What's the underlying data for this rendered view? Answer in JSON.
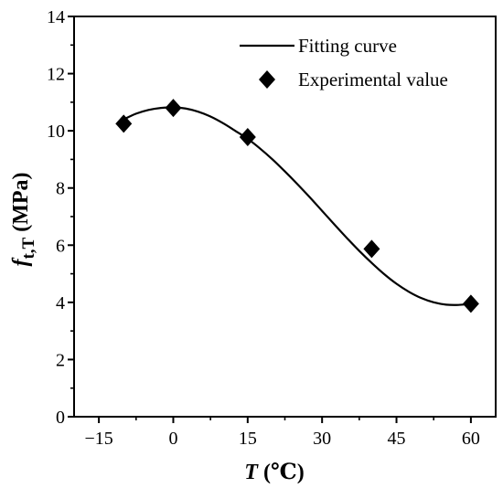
{
  "chart_data": {
    "type": "line",
    "xlim": [
      -20,
      65
    ],
    "ylim": [
      0,
      14
    ],
    "xticks": [
      -15,
      0,
      15,
      30,
      45,
      60
    ],
    "yticks": [
      0,
      2,
      4,
      6,
      8,
      10,
      12,
      14
    ],
    "xtick_labels": [
      "−15",
      "0",
      "15",
      "30",
      "45",
      "60"
    ],
    "ytick_labels": [
      "0",
      "2",
      "4",
      "6",
      "8",
      "10",
      "12",
      "14"
    ],
    "xlabel": {
      "var": "T",
      "unit": " (℃)"
    },
    "ylabel": {
      "var": "f",
      "sub": "t,T",
      "unit": " (MPa)"
    },
    "grid": false,
    "legend_position": "top-right",
    "series": [
      {
        "name": "Fitting curve",
        "kind": "line",
        "color": "#000000",
        "x": [
          -10,
          -7.5,
          -5,
          -2.5,
          0,
          2.5,
          5,
          7.5,
          10,
          12.5,
          15,
          17.5,
          20,
          22.5,
          25,
          27.5,
          30,
          32.5,
          35,
          37.5,
          40,
          42.5,
          45,
          47.5,
          50,
          52.5,
          55,
          57.5,
          60
        ],
        "y": [
          10.4,
          10.6,
          10.73,
          10.8,
          10.82,
          10.78,
          10.67,
          10.5,
          10.27,
          10.0,
          9.72,
          9.38,
          9.0,
          8.58,
          8.14,
          7.68,
          7.2,
          6.72,
          6.25,
          5.8,
          5.38,
          4.99,
          4.65,
          4.37,
          4.15,
          4.0,
          3.92,
          3.91,
          3.95
        ]
      },
      {
        "name": "Experimental value",
        "kind": "scatter",
        "marker": "diamond",
        "color": "#000000",
        "x": [
          -10,
          0,
          15,
          40,
          60
        ],
        "y": [
          10.25,
          10.8,
          9.78,
          5.87,
          3.95
        ]
      }
    ]
  }
}
